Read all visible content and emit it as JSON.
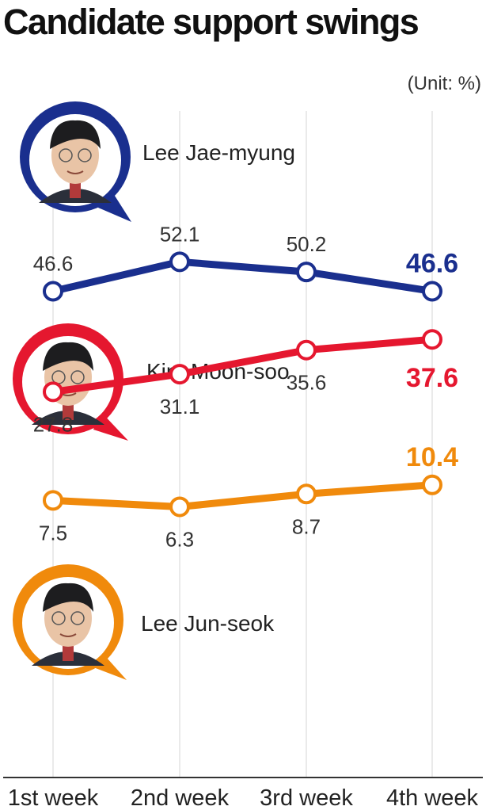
{
  "title": "Candidate support swings",
  "unit": "(Unit: %)",
  "chart_data": {
    "type": "line",
    "title": "Candidate support swings",
    "unit": "(Unit: %)",
    "categories": [
      "1st week",
      "2nd week",
      "3rd week",
      "4th week"
    ],
    "series": [
      {
        "name": "Lee Jae-myung",
        "values": [
          46.6,
          52.1,
          50.2,
          46.6
        ],
        "color": "#1a2f8e",
        "icon": "portrait-lee-jae-myung-icon"
      },
      {
        "name": "Kim Moon-soo",
        "values": [
          27.8,
          31.1,
          35.6,
          37.6
        ],
        "color": "#e5172f",
        "icon": "portrait-kim-moon-soo-icon"
      },
      {
        "name": "Lee Jun-seok",
        "values": [
          7.5,
          6.3,
          8.7,
          10.4
        ],
        "color": "#f08a0c",
        "icon": "portrait-lee-jun-seok-icon"
      }
    ]
  }
}
